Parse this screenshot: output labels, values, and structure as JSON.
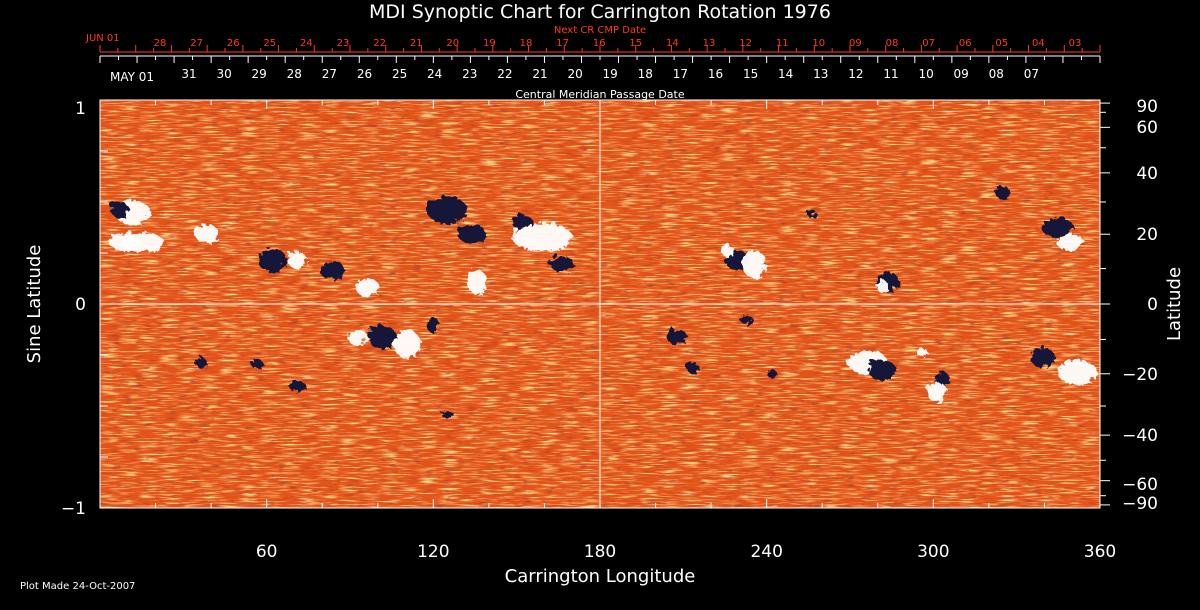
{
  "title": "MDI Synoptic Chart for Carrington Rotation 1976",
  "top_axis": {
    "label": "Next CR CMP Date",
    "start_label": "JUN 01",
    "ticks": [
      "28",
      "27",
      "26",
      "25",
      "24",
      "23",
      "22",
      "21",
      "20",
      "19",
      "18",
      "17",
      "16",
      "15",
      "14",
      "13",
      "12",
      "11",
      "10",
      "09",
      "08",
      "07",
      "06",
      "05",
      "04",
      "03"
    ],
    "color": "#ff3a1a"
  },
  "cmp_axis": {
    "label": "Central Meridian Passage Date",
    "start_label": "MAY 01",
    "ticks": [
      "31",
      "30",
      "29",
      "28",
      "27",
      "26",
      "25",
      "24",
      "23",
      "22",
      "21",
      "20",
      "19",
      "18",
      "17",
      "16",
      "15",
      "14",
      "13",
      "12",
      "11",
      "10",
      "09",
      "08",
      "07"
    ]
  },
  "axes": {
    "xlabel": "Carrington Longitude",
    "x_ticks": [
      "60",
      "120",
      "180",
      "240",
      "300",
      "360"
    ],
    "ylabel_left": "Sine Latitude",
    "y_ticks_left": [
      "1",
      "0",
      "−1"
    ],
    "ylabel_right": "Latitude",
    "y_ticks_right": [
      "90",
      "60",
      "40",
      "20",
      "0",
      "−20",
      "−40",
      "−60",
      "−90"
    ]
  },
  "footer": "Plot Made 24-Oct-2007",
  "colors": {
    "background": "#000000",
    "field_base": "#e3541a",
    "positive_polarity": "#ffffff",
    "negative_polarity": "#14143a",
    "accent": "#ff3a1a"
  }
}
